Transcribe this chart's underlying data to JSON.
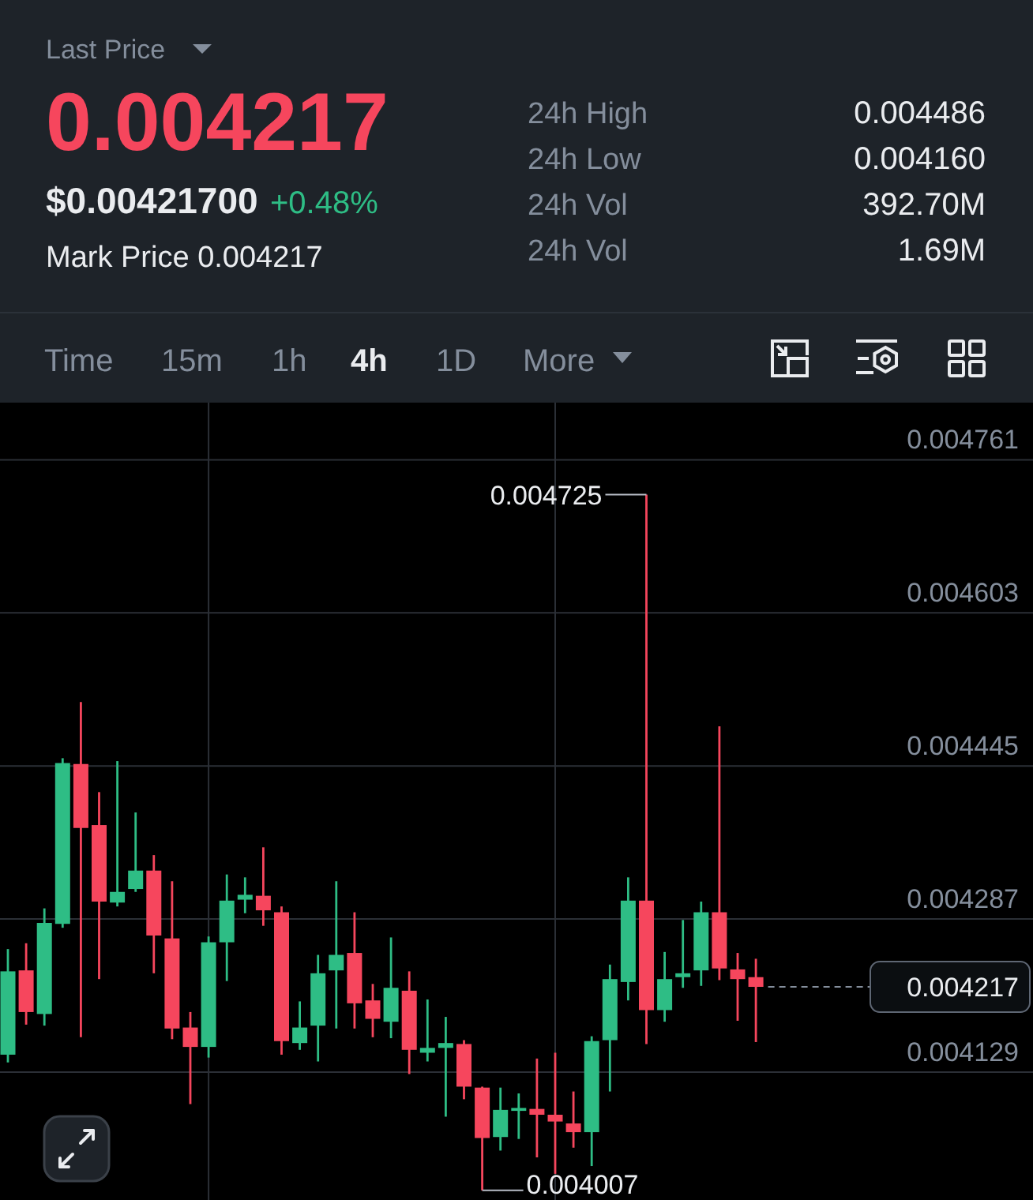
{
  "chart_data": [
    {
      "type": "other",
      "annotations": [
        "Last Price",
        "0.004217",
        "$0.00421700",
        "+0.48%",
        "Mark Price 0.004217",
        "24h High",
        "0.004486",
        "24h Low",
        "0.004160",
        "24h Vol",
        "392.70M",
        "24h Vol",
        "1.69M",
        "Time",
        "15m",
        "1h",
        "4h",
        "1D",
        "More"
      ]
    },
    {
      "type": "candlestick",
      "categories": [
        null,
        null,
        null,
        null,
        null,
        null,
        null,
        null,
        null,
        null,
        null,
        null,
        null,
        null,
        null,
        null,
        null,
        null,
        null,
        null,
        null,
        null,
        null,
        null,
        null,
        null,
        null,
        null,
        null,
        null,
        null,
        null,
        null,
        null,
        null,
        null,
        null,
        null,
        null,
        null,
        null,
        null
      ],
      "ohlc": [
        [
          0.004147,
          0.004256,
          0.004139,
          0.004233
        ],
        [
          0.004234,
          0.004262,
          0.004178,
          0.004191
        ],
        [
          0.004189,
          0.004298,
          0.004177,
          0.004283
        ],
        [
          0.004282,
          0.004453,
          0.004278,
          0.004448
        ],
        [
          0.004447,
          0.004511,
          0.004165,
          0.004381
        ],
        [
          0.004384,
          0.004418,
          0.004225,
          0.004305
        ],
        [
          0.004304,
          0.00445,
          0.0043,
          0.004315
        ],
        [
          0.004318,
          0.004397,
          0.004315,
          0.004337
        ],
        [
          0.004337,
          0.004353,
          0.004231,
          0.00427
        ],
        [
          0.004267,
          0.004326,
          0.004163,
          0.004174
        ],
        [
          0.004175,
          0.004191,
          0.004096,
          0.004155
        ],
        [
          0.004155,
          0.004269,
          0.004144,
          0.004263
        ],
        [
          0.004263,
          0.004333,
          0.004223,
          0.004306
        ],
        [
          0.004307,
          0.00433,
          0.004293,
          0.004312
        ],
        [
          0.004311,
          0.004361,
          0.00428,
          0.004296
        ],
        [
          0.004294,
          0.0043,
          0.004147,
          0.004161
        ],
        [
          0.004159,
          0.004202,
          0.004152,
          0.004175
        ],
        [
          0.004177,
          0.00425,
          0.00414,
          0.004231
        ],
        [
          0.004234,
          0.004326,
          0.004174,
          0.00425
        ],
        [
          0.004252,
          0.004294,
          0.004174,
          0.0042
        ],
        [
          0.004203,
          0.00422,
          0.004165,
          0.004184
        ],
        [
          0.004181,
          0.004268,
          0.004164,
          0.004216
        ],
        [
          0.004213,
          0.004233,
          0.004127,
          0.004152
        ],
        [
          0.004149,
          0.004204,
          0.00414,
          0.004154
        ],
        [
          0.004154,
          0.004186,
          0.004083,
          0.004159
        ],
        [
          0.004158,
          0.004162,
          0.004101,
          0.004114
        ],
        [
          0.004113,
          0.004114,
          0.004007,
          0.004061
        ],
        [
          0.004062,
          0.004113,
          0.004048,
          0.00409
        ],
        [
          0.004089,
          0.004107,
          0.00406,
          0.004092
        ],
        [
          0.004091,
          0.004143,
          0.004041,
          0.004085
        ],
        [
          0.004085,
          0.004149,
          0.004024,
          0.004078
        ],
        [
          0.004076,
          0.004109,
          0.004051,
          0.004067
        ],
        [
          0.004067,
          0.004166,
          0.004032,
          0.004161
        ],
        [
          0.004162,
          0.00424,
          0.004109,
          0.004225
        ],
        [
          0.004222,
          0.00433,
          0.004203,
          0.004306
        ],
        [
          0.004306,
          0.004725,
          0.004158,
          0.004193
        ],
        [
          0.004193,
          0.004253,
          0.004181,
          0.004225
        ],
        [
          0.004227,
          0.004286,
          0.004216,
          0.004231
        ],
        [
          0.004234,
          0.004305,
          0.004218,
          0.004294
        ],
        [
          0.004294,
          0.004486,
          0.004224,
          0.004236
        ],
        [
          0.004235,
          0.004252,
          0.004182,
          0.004225
        ],
        [
          0.004227,
          0.004246,
          0.00416,
          0.004217
        ]
      ],
      "ylim": [
        0.003997,
        0.00482
      ],
      "yticks": [
        0.004129,
        0.004287,
        0.004445,
        0.004603,
        0.004761
      ],
      "grid": "y",
      "tick_labels": "y",
      "ref_lines": [
        {
          "axis": "y",
          "value": 0.004217,
          "label": "0.004217",
          "line_style": "dashed"
        }
      ],
      "annotations": [
        "0.004725",
        "0.004007"
      ]
    }
  ]
}
